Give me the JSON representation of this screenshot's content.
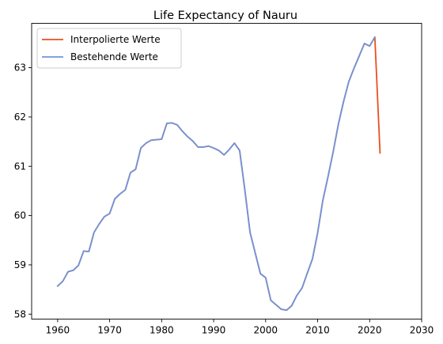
{
  "chart_data": {
    "type": "line",
    "title": "Life Expectancy of Nauru",
    "xlabel": "",
    "ylabel": "",
    "xlim": [
      1955,
      2030
    ],
    "ylim": [
      57.9,
      63.9
    ],
    "xticks": [
      1960,
      1970,
      1980,
      1990,
      2000,
      2010,
      2020,
      2030
    ],
    "yticks": [
      58,
      59,
      60,
      61,
      62,
      63
    ],
    "grid": false,
    "legend_position": "top-left",
    "series": [
      {
        "name": "Interpolierte Werte",
        "color": "#e8501e",
        "x": [
          1960,
          1961,
          1962,
          1963,
          1964,
          1965,
          1966,
          1967,
          1968,
          1969,
          1970,
          1971,
          1972,
          1973,
          1974,
          1975,
          1976,
          1977,
          1978,
          1979,
          1980,
          1981,
          1982,
          1983,
          1984,
          1985,
          1986,
          1987,
          1988,
          1989,
          1990,
          1991,
          1992,
          1993,
          1994,
          1995,
          1996,
          1997,
          1998,
          1999,
          2000,
          2001,
          2002,
          2003,
          2004,
          2005,
          2006,
          2007,
          2008,
          2009,
          2010,
          2011,
          2012,
          2013,
          2014,
          2015,
          2016,
          2017,
          2018,
          2019,
          2020,
          2021,
          2022
        ],
        "y": [
          58.57,
          58.67,
          58.86,
          58.89,
          58.99,
          59.28,
          59.27,
          59.66,
          59.83,
          59.98,
          60.04,
          60.34,
          60.44,
          60.52,
          60.87,
          60.94,
          61.37,
          61.47,
          61.53,
          61.54,
          61.55,
          61.87,
          61.88,
          61.84,
          61.71,
          61.6,
          61.51,
          61.39,
          61.39,
          61.41,
          61.37,
          61.32,
          61.23,
          61.34,
          61.47,
          61.32,
          60.52,
          59.66,
          59.24,
          58.82,
          58.74,
          58.28,
          58.19,
          58.1,
          58.08,
          58.17,
          58.38,
          58.53,
          58.83,
          59.12,
          59.65,
          60.31,
          60.79,
          61.3,
          61.86,
          62.32,
          62.72,
          62.99,
          63.24,
          63.49,
          63.44,
          63.62,
          61.27
        ]
      },
      {
        "name": "Bestehende Werte",
        "color": "#6f94dc",
        "x": [
          1960,
          1961,
          1962,
          1963,
          1964,
          1965,
          1966,
          1967,
          1968,
          1969,
          1970,
          1971,
          1972,
          1973,
          1974,
          1975,
          1976,
          1977,
          1978,
          1979,
          1980,
          1981,
          1982,
          1983,
          1984,
          1985,
          1986,
          1987,
          1988,
          1989,
          1990,
          1991,
          1992,
          1993,
          1994,
          1995,
          1996,
          1997,
          1998,
          1999,
          2000,
          2001,
          2002,
          2003,
          2004,
          2005,
          2006,
          2007,
          2008,
          2009,
          2010,
          2011,
          2012,
          2013,
          2014,
          2015,
          2016,
          2017,
          2018,
          2019,
          2020,
          2021
        ],
        "y": [
          58.57,
          58.67,
          58.86,
          58.89,
          58.99,
          59.28,
          59.27,
          59.66,
          59.83,
          59.98,
          60.04,
          60.34,
          60.44,
          60.52,
          60.87,
          60.94,
          61.37,
          61.47,
          61.53,
          61.54,
          61.55,
          61.87,
          61.88,
          61.84,
          61.71,
          61.6,
          61.51,
          61.39,
          61.39,
          61.41,
          61.37,
          61.32,
          61.23,
          61.34,
          61.47,
          61.32,
          60.52,
          59.66,
          59.24,
          58.82,
          58.74,
          58.28,
          58.19,
          58.1,
          58.08,
          58.17,
          58.38,
          58.53,
          58.83,
          59.12,
          59.65,
          60.31,
          60.79,
          61.3,
          61.86,
          62.32,
          62.72,
          62.99,
          63.24,
          63.49,
          63.44,
          63.62
        ]
      }
    ]
  }
}
